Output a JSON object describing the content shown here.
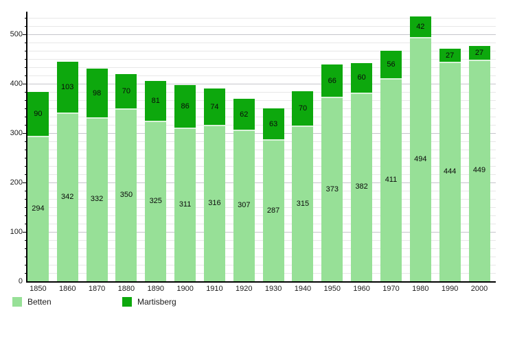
{
  "chart_data": {
    "type": "bar",
    "stacked": true,
    "title": "",
    "xlabel": "",
    "ylabel": "",
    "categories": [
      "1850",
      "1860",
      "1870",
      "1880",
      "1890",
      "1900",
      "1910",
      "1920",
      "1930",
      "1940",
      "1950",
      "1960",
      "1970",
      "1980",
      "1990",
      "2000"
    ],
    "series": [
      {
        "name": "Betten",
        "color": "#97e097",
        "values": [
          294,
          342,
          332,
          350,
          325,
          311,
          316,
          307,
          287,
          315,
          373,
          382,
          411,
          494,
          444,
          449
        ]
      },
      {
        "name": "Martisberg",
        "color": "#0da80d",
        "values": [
          90,
          103,
          98,
          70,
          81,
          86,
          74,
          62,
          63,
          70,
          66,
          60,
          56,
          42,
          27,
          27
        ]
      }
    ],
    "yticks": [
      0,
      100,
      200,
      300,
      400,
      500
    ],
    "ylim": [
      0,
      550
    ],
    "grid": true,
    "minor_grid_divisions_per_major": 6,
    "legend_position": "bottom",
    "value_labels": "inside-segments"
  }
}
